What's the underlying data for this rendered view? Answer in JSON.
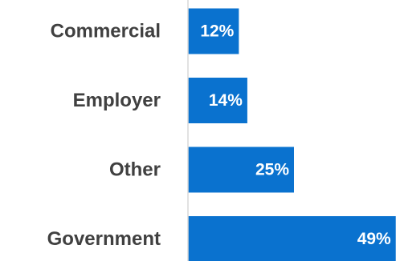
{
  "chart_data": {
    "type": "bar",
    "orientation": "horizontal",
    "categories": [
      "Commercial",
      "Employer",
      "Other",
      "Government"
    ],
    "values": [
      12,
      14,
      25,
      49
    ],
    "value_format": "{v}%",
    "xlim": [
      0,
      50
    ],
    "grid": false,
    "legend": "none",
    "colors": {
      "bar": "#0a72cf",
      "axis": "#d9d9d9",
      "category_text": "#404040",
      "value_text": "#ffffff"
    }
  }
}
